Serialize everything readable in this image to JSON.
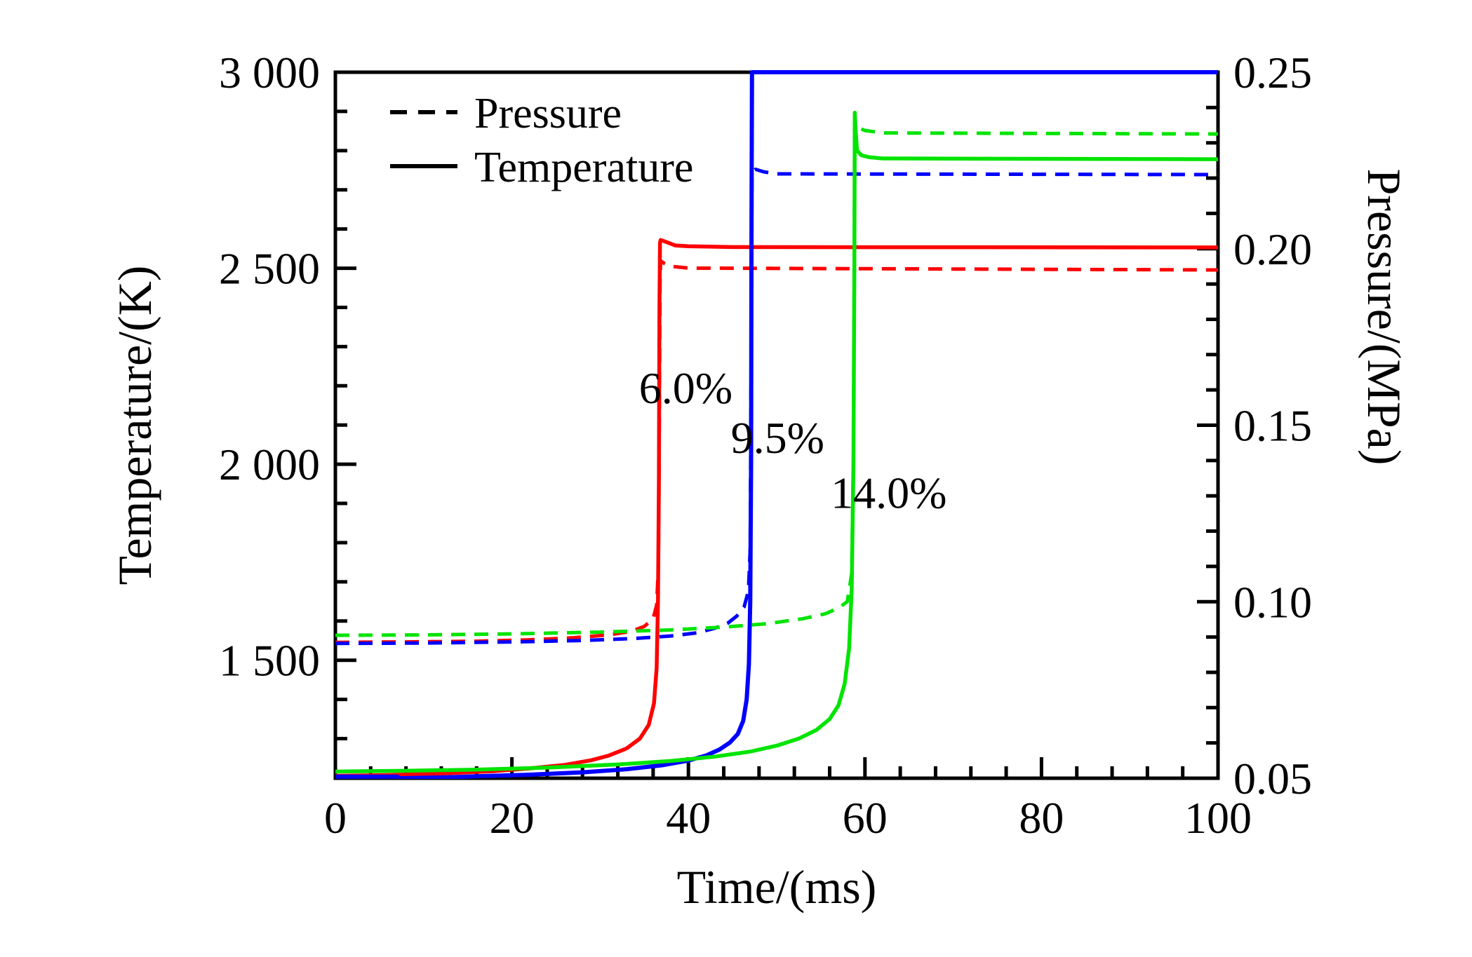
{
  "figure_name": "ignition-delay-temperature-pressure-chart",
  "chart_data": {
    "type": "line",
    "title": "",
    "xlabel": "Time/(ms)",
    "ylabel_left": "Temperature/(K)",
    "ylabel_right": "Pressure/(MPa)",
    "x_range": [
      0,
      100
    ],
    "y_left_range": [
      1199,
      3000
    ],
    "y_right_range": [
      0.05,
      0.25
    ],
    "grid": "off",
    "x_major_ticks": [
      0,
      20,
      40,
      60,
      80,
      100
    ],
    "x_major_labels": [
      "0",
      "20",
      "40",
      "60",
      "80",
      "100"
    ],
    "x_minor_step": 4,
    "y_left_major_ticks": [
      1500,
      2000,
      2500,
      3000
    ],
    "y_left_major_labels": [
      "1 500",
      "2 000",
      "2 500",
      "3 000"
    ],
    "y_left_minor_step": 100,
    "y_right_major_ticks": [
      0.05,
      0.1,
      0.15,
      0.2,
      0.25
    ],
    "y_right_major_labels": [
      "0.05",
      "0.10",
      "0.15",
      "0.20",
      "0.25"
    ],
    "y_right_minor_step": 0.01,
    "legend_position": "top-left-inside",
    "legend": [
      {
        "label": "Pressure",
        "style": "dashed"
      },
      {
        "label": "Temperature",
        "style": "solid"
      }
    ],
    "annotations": [
      {
        "text": "6.0%",
        "t": 39.7,
        "temp": 2195
      },
      {
        "text": "9.5%",
        "t": 50.1,
        "temp": 2068
      },
      {
        "text": "14.0%",
        "t": 62.7,
        "temp": 1928
      }
    ],
    "colors": {
      "pct_6_0": "#ff0000",
      "pct_9_5": "#0000ff",
      "pct_14_0": "#00e400",
      "axis": "#000000"
    },
    "series": [
      {
        "id": "temperature-6.0pct",
        "concentration": "6.0%",
        "quantity": "Temperature",
        "axis": "left",
        "color": "#ff0000",
        "style": "solid",
        "width": 5.5,
        "ignition_delay_ms": 36.7,
        "final_value": 2553,
        "peak_value": 2572,
        "points": [
          [
            0,
            1205
          ],
          [
            6,
            1207
          ],
          [
            12,
            1211
          ],
          [
            18,
            1217
          ],
          [
            22,
            1224
          ],
          [
            26,
            1233
          ],
          [
            29,
            1245
          ],
          [
            31,
            1257
          ],
          [
            33,
            1275
          ],
          [
            34.5,
            1300
          ],
          [
            35.5,
            1335
          ],
          [
            36.1,
            1390
          ],
          [
            36.4,
            1480
          ],
          [
            36.55,
            1650
          ],
          [
            36.65,
            1950
          ],
          [
            36.72,
            2400
          ],
          [
            36.78,
            2565
          ],
          [
            36.85,
            2572
          ],
          [
            37.6,
            2566
          ],
          [
            38.5,
            2558
          ],
          [
            40,
            2556
          ],
          [
            45,
            2554
          ],
          [
            100,
            2553
          ]
        ]
      },
      {
        "id": "pressure-6.0pct",
        "concentration": "6.0%",
        "quantity": "Pressure",
        "axis": "right",
        "color": "#ff0000",
        "style": "dashed",
        "width": 5,
        "ignition_delay_ms": 36.7,
        "initial_value": 0.0885,
        "final_value": 0.194,
        "points": [
          [
            0,
            0.0885
          ],
          [
            8,
            0.0886
          ],
          [
            16,
            0.0888
          ],
          [
            22,
            0.0892
          ],
          [
            27,
            0.0898
          ],
          [
            31,
            0.0906
          ],
          [
            33.5,
            0.0916
          ],
          [
            35,
            0.093
          ],
          [
            36,
            0.0952
          ],
          [
            36.4,
            0.099
          ],
          [
            36.6,
            0.11
          ],
          [
            36.7,
            0.15
          ],
          [
            36.78,
            0.19
          ],
          [
            36.85,
            0.1965
          ],
          [
            37.3,
            0.1958
          ],
          [
            38,
            0.195
          ],
          [
            40,
            0.1945
          ],
          [
            100,
            0.194
          ]
        ]
      },
      {
        "id": "temperature-9.5pct",
        "concentration": "9.5%",
        "quantity": "Temperature",
        "axis": "left",
        "color": "#0000ff",
        "style": "solid",
        "width": 6,
        "ignition_delay_ms": 47.1,
        "final_value": 3000,
        "points": [
          [
            0,
            1203
          ],
          [
            7,
            1203
          ],
          [
            7.3,
            1199
          ],
          [
            12,
            1201
          ],
          [
            16,
            1204
          ],
          [
            22,
            1208
          ],
          [
            28,
            1214
          ],
          [
            33,
            1222
          ],
          [
            37,
            1232
          ],
          [
            40,
            1244
          ],
          [
            42,
            1257
          ],
          [
            43.5,
            1272
          ],
          [
            44.7,
            1290
          ],
          [
            45.6,
            1312
          ],
          [
            46.2,
            1345
          ],
          [
            46.6,
            1400
          ],
          [
            46.85,
            1490
          ],
          [
            47,
            1650
          ],
          [
            47.1,
            2000
          ],
          [
            47.15,
            2600
          ],
          [
            47.2,
            3000
          ],
          [
            100,
            3000
          ]
        ]
      },
      {
        "id": "pressure-9.5pct",
        "concentration": "9.5%",
        "quantity": "Pressure",
        "axis": "right",
        "color": "#0000ff",
        "style": "dashed",
        "width": 5,
        "ignition_delay_ms": 47.1,
        "initial_value": 0.088,
        "final_value": 0.221,
        "points": [
          [
            0,
            0.0882
          ],
          [
            10,
            0.0883
          ],
          [
            20,
            0.0886
          ],
          [
            28,
            0.089
          ],
          [
            34,
            0.0896
          ],
          [
            38,
            0.0903
          ],
          [
            41,
            0.0912
          ],
          [
            43,
            0.0925
          ],
          [
            44.5,
            0.094
          ],
          [
            45.5,
            0.096
          ],
          [
            46.3,
            0.0985
          ],
          [
            46.8,
            0.103
          ],
          [
            47,
            0.115
          ],
          [
            47.1,
            0.165
          ],
          [
            47.2,
            0.2215
          ],
          [
            47.6,
            0.2225
          ],
          [
            48.5,
            0.2218
          ],
          [
            50,
            0.2212
          ],
          [
            100,
            0.221
          ]
        ]
      },
      {
        "id": "temperature-14.0pct",
        "concentration": "14.0%",
        "quantity": "Temperature",
        "axis": "left",
        "color": "#00e400",
        "style": "solid",
        "width": 5.5,
        "ignition_delay_ms": 58.8,
        "final_value": 2778,
        "peak_value": 2897,
        "points": [
          [
            0,
            1216
          ],
          [
            8,
            1218
          ],
          [
            16,
            1221
          ],
          [
            24,
            1226
          ],
          [
            32,
            1234
          ],
          [
            38,
            1243
          ],
          [
            43,
            1254
          ],
          [
            47,
            1267
          ],
          [
            50,
            1282
          ],
          [
            52.5,
            1300
          ],
          [
            54.5,
            1322
          ],
          [
            56,
            1350
          ],
          [
            57,
            1385
          ],
          [
            57.7,
            1440
          ],
          [
            58.2,
            1530
          ],
          [
            58.5,
            1680
          ],
          [
            58.7,
            2000
          ],
          [
            58.8,
            2500
          ],
          [
            58.85,
            2897
          ],
          [
            58.95,
            2850
          ],
          [
            59.1,
            2800
          ],
          [
            59.6,
            2788
          ],
          [
            60.5,
            2783
          ],
          [
            62,
            2780
          ],
          [
            100,
            2778
          ]
        ]
      },
      {
        "id": "pressure-14.0pct",
        "concentration": "14.0%",
        "quantity": "Pressure",
        "axis": "right",
        "color": "#00e400",
        "style": "dashed",
        "width": 5,
        "ignition_delay_ms": 58.8,
        "initial_value": 0.0905,
        "final_value": 0.2325,
        "points": [
          [
            0,
            0.0905
          ],
          [
            10,
            0.0906
          ],
          [
            20,
            0.0909
          ],
          [
            30,
            0.0914
          ],
          [
            38,
            0.092
          ],
          [
            44,
            0.0928
          ],
          [
            49,
            0.0938
          ],
          [
            53,
            0.0952
          ],
          [
            55.5,
            0.0966
          ],
          [
            57,
            0.0982
          ],
          [
            58,
            0.1
          ],
          [
            58.5,
            0.108
          ],
          [
            58.7,
            0.14
          ],
          [
            58.85,
            0.2335
          ],
          [
            59.3,
            0.2342
          ],
          [
            60,
            0.2335
          ],
          [
            62,
            0.2328
          ],
          [
            100,
            0.2325
          ]
        ]
      }
    ]
  }
}
